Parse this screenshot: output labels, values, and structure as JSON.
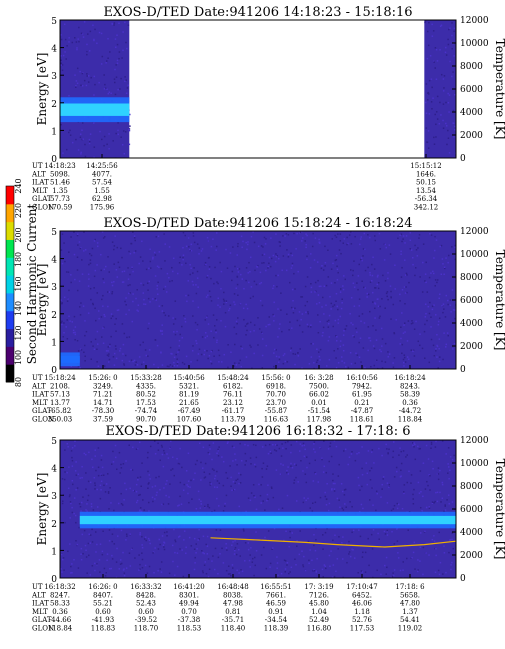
{
  "chart_data": [
    {
      "type": "heatmap",
      "title": "EXOS-D/TED   Date:941206  14:18:23 - 15:18:16",
      "ylabel": "Energy [eV]",
      "y2label": "Temperature [K]",
      "ylim": [
        0,
        5
      ],
      "y2lim": [
        0,
        12000
      ],
      "yticks": [
        "0",
        "1",
        "2",
        "3",
        "4",
        "5"
      ],
      "y2ticks": [
        "0",
        "2000",
        "4000",
        "6000",
        "8000",
        "10000",
        "12000"
      ],
      "data_spans": [
        [
          0.0,
          0.175
        ],
        [
          0.92,
          1.0
        ]
      ],
      "intensity_band": {
        "energy_center": 1.75,
        "energy_width": 0.9,
        "span": [
          0.0,
          0.175
        ],
        "level": "high"
      },
      "temperature_trace": [],
      "table": {
        "labels": [
          "UT",
          "ALT",
          "ILAT",
          "MLT",
          "GLAT",
          "GLON"
        ],
        "columns": [
          {
            "values": [
              "14:18:23",
              "5098.",
              "51.46",
              "1.35",
              "57.73",
              "170.59"
            ]
          },
          {
            "values": [
              "14:25:56",
              "4077.",
              "57.54",
              "1.55",
              "62.98",
              "175.96"
            ]
          },
          {
            "values": [
              "15:15:12",
              "1646.",
              "50.15",
              "13.54",
              "-56.34",
              "342.12"
            ]
          }
        ]
      }
    },
    {
      "type": "heatmap",
      "title": "EXOS-D/TED   Date:941206  15:18:24 - 16:18:24",
      "ylabel": "Energy [eV]",
      "y2label": "Temperature [K]",
      "ylim": [
        0,
        5
      ],
      "y2lim": [
        0,
        12000
      ],
      "yticks": [
        "0",
        "1",
        "2",
        "3",
        "4",
        "5"
      ],
      "y2ticks": [
        "0",
        "2000",
        "4000",
        "6000",
        "8000",
        "10000",
        "12000"
      ],
      "data_spans": [
        [
          0.0,
          1.0
        ]
      ],
      "intensity_band": {
        "energy_center": 0.35,
        "energy_width": 0.5,
        "span": [
          0.0,
          0.05
        ],
        "level": "medium"
      },
      "temperature_trace": [],
      "table": {
        "labels": [
          "UT",
          "ALT",
          "ILAT",
          "MLT",
          "GLAT",
          "GLON"
        ],
        "columns": [
          {
            "values": [
              "15:18:24",
              "2108.",
              "57.13",
              "13.77",
              "-65.82",
              "350.03"
            ]
          },
          {
            "values": [
              "15:26: 0",
              "3249.",
              "71.21",
              "14.71",
              "-78.30",
              "37.59"
            ]
          },
          {
            "values": [
              "15:33:28",
              "4335.",
              "80.52",
              "17.53",
              "-74.74",
              "90.70"
            ]
          },
          {
            "values": [
              "15:40:56",
              "5321.",
              "81.19",
              "21.65",
              "-67.49",
              "107.60"
            ]
          },
          {
            "values": [
              "15:48:24",
              "6182.",
              "76.11",
              "23.12",
              "-61.17",
              "113.79"
            ]
          },
          {
            "values": [
              "15:56: 0",
              "6918.",
              "70.70",
              "23.70",
              "-55.87",
              "116.63"
            ]
          },
          {
            "values": [
              "16: 3:28",
              "7500.",
              "66.02",
              "0.01",
              "-51.54",
              "117.98"
            ]
          },
          {
            "values": [
              "16:10:56",
              "7942.",
              "61.95",
              "0.21",
              "-47.87",
              "118.61"
            ]
          },
          {
            "values": [
              "16:18:24",
              "8243.",
              "58.39",
              "0.36",
              "-44.72",
              "118.84"
            ]
          }
        ]
      }
    },
    {
      "type": "heatmap",
      "title": "EXOS-D/TED   Date:941206  16:18:32 - 17:18: 6",
      "ylabel": "Energy [eV]",
      "y2label": "Temperature [K]",
      "ylim": [
        0,
        5
      ],
      "y2lim": [
        0,
        12000
      ],
      "yticks": [
        "0",
        "1",
        "2",
        "3",
        "4",
        "5"
      ],
      "y2ticks": [
        "0",
        "2000",
        "4000",
        "6000",
        "8000",
        "10000",
        "12000"
      ],
      "data_spans": [
        [
          0.0,
          1.0
        ]
      ],
      "intensity_band": {
        "energy_center": 2.1,
        "energy_width": 0.6,
        "span": [
          0.05,
          1.0
        ],
        "level": "high"
      },
      "temperature_trace": [
        {
          "t": 0.38,
          "k": 3500
        },
        {
          "t": 0.5,
          "k": 3300
        },
        {
          "t": 0.62,
          "k": 3100
        },
        {
          "t": 0.7,
          "k": 2900
        },
        {
          "t": 0.82,
          "k": 2700
        },
        {
          "t": 0.92,
          "k": 2900
        },
        {
          "t": 1.0,
          "k": 3200
        }
      ],
      "table": {
        "labels": [
          "UT",
          "ALT",
          "ILAT",
          "MLT",
          "GLAT",
          "GLON"
        ],
        "columns": [
          {
            "values": [
              "16:18:32",
              "8247.",
              "58.33",
              "0.36",
              "-44.66",
              "118.84"
            ]
          },
          {
            "values": [
              "16:26: 0",
              "8407.",
              "55.21",
              "0.60",
              "-41.93",
              "118.83"
            ]
          },
          {
            "values": [
              "16:33:32",
              "8428.",
              "52.43",
              "0.60",
              "-39.52",
              "118.70"
            ]
          },
          {
            "values": [
              "16:41:20",
              "8301.",
              "49.94",
              "0.70",
              "-37.38",
              "118.53"
            ]
          },
          {
            "values": [
              "16:48:48",
              "8038.",
              "47.98",
              "0.81",
              "-35.71",
              "118.40"
            ]
          },
          {
            "values": [
              "16:55:51",
              "7661.",
              "46.59",
              "0.91",
              "-34.54",
              "118.39"
            ]
          },
          {
            "values": [
              "17: 3:19",
              "7126.",
              "45.80",
              "1.04",
              "52.49",
              "116.80"
            ]
          },
          {
            "values": [
              "17:10:47",
              "6452.",
              "46.06",
              "1.18",
              "52.76",
              "117.53"
            ]
          },
          {
            "values": [
              "17:18: 6",
              "5658.",
              "47.80",
              "1.37",
              "54.41",
              "119.02"
            ]
          }
        ]
      }
    }
  ],
  "colorbar": {
    "label": "Second Harmonic Current",
    "ticks": [
      "80",
      "100",
      "120",
      "140",
      "160",
      "180",
      "200",
      "220",
      "240"
    ],
    "colors": [
      "#000000",
      "#4b006e",
      "#2a1ea0",
      "#1e3cf0",
      "#1e8cff",
      "#00d2e6",
      "#00e6b4",
      "#00e650",
      "#dcdc00",
      "#ffa500",
      "#ff0000"
    ]
  },
  "colors": {
    "background": "#3c2caa",
    "noise": "#4a32c8",
    "band_high": "#30d8ff",
    "band_mid": "#1e6cff",
    "trace": "#f0b000"
  }
}
